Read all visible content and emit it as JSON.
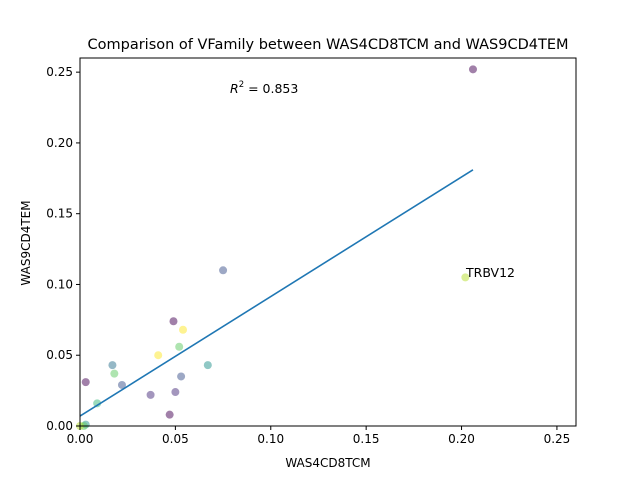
{
  "chart_data": {
    "type": "scatter",
    "title": "Comparison of VFamily between WAS4CD8TCM and WAS9CD4TEM",
    "xlabel": "WAS4CD8TCM",
    "ylabel": "WAS9CD4TEM",
    "xlim": [
      0,
      0.26
    ],
    "ylim": [
      0,
      0.26
    ],
    "xticks": [
      "0.00",
      "0.05",
      "0.10",
      "0.15",
      "0.20",
      "0.25"
    ],
    "yticks": [
      "0.00",
      "0.05",
      "0.10",
      "0.15",
      "0.20",
      "0.25"
    ],
    "grid": false,
    "annotations": {
      "r2_prefix": "R",
      "r2_exp": "2",
      "r2_value": " = 0.853",
      "point_label": "TRBV12"
    },
    "fit_line": {
      "x": [
        0.0,
        0.206
      ],
      "y": [
        0.007,
        0.181
      ],
      "color": "#1f77b4"
    },
    "points": [
      {
        "x": 0.206,
        "y": 0.252,
        "color": "#440154"
      },
      {
        "x": 0.202,
        "y": 0.105,
        "color": "#b5de2b"
      },
      {
        "x": 0.075,
        "y": 0.11,
        "color": "#3b528b"
      },
      {
        "x": 0.049,
        "y": 0.074,
        "color": "#440154"
      },
      {
        "x": 0.054,
        "y": 0.068,
        "color": "#fde725"
      },
      {
        "x": 0.052,
        "y": 0.056,
        "color": "#5ec962"
      },
      {
        "x": 0.041,
        "y": 0.05,
        "color": "#fde725"
      },
      {
        "x": 0.067,
        "y": 0.043,
        "color": "#21918c"
      },
      {
        "x": 0.017,
        "y": 0.043,
        "color": "#2c728e"
      },
      {
        "x": 0.018,
        "y": 0.037,
        "color": "#5ec962"
      },
      {
        "x": 0.053,
        "y": 0.035,
        "color": "#3b528b"
      },
      {
        "x": 0.003,
        "y": 0.031,
        "color": "#440154"
      },
      {
        "x": 0.022,
        "y": 0.029,
        "color": "#3b528b"
      },
      {
        "x": 0.05,
        "y": 0.024,
        "color": "#472d7b"
      },
      {
        "x": 0.037,
        "y": 0.022,
        "color": "#472d7b"
      },
      {
        "x": 0.009,
        "y": 0.016,
        "color": "#35b779"
      },
      {
        "x": 0.047,
        "y": 0.008,
        "color": "#440154"
      },
      {
        "x": 0.003,
        "y": 0.001,
        "color": "#21918c"
      },
      {
        "x": 0.002,
        "y": 0.0,
        "color": "#5ec962"
      },
      {
        "x": 0.0,
        "y": 0.0,
        "color": "#b5de2b"
      }
    ]
  }
}
